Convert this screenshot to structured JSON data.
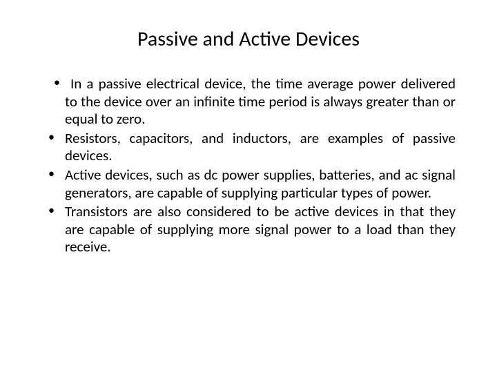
{
  "slide": {
    "title": "Passive and Active Devices",
    "title_fontsize": 30,
    "body_fontsize": 21,
    "text_color": "#000000",
    "background_color": "#ffffff",
    "font_family": "Calibri",
    "bullets": [
      "In a passive electrical device, the time average power delivered to the device over an infinite time period is always greater than or equal to zero.",
      "Resistors, capacitors, and inductors, are examples of passive devices.",
      "Active devices, such as dc power supplies, batteries, and ac signal generators, are capable of supplying particular types of power.",
      "Transistors are also considered to be active devices in that they are capable of supplying more signal power to a load than they receive."
    ]
  }
}
